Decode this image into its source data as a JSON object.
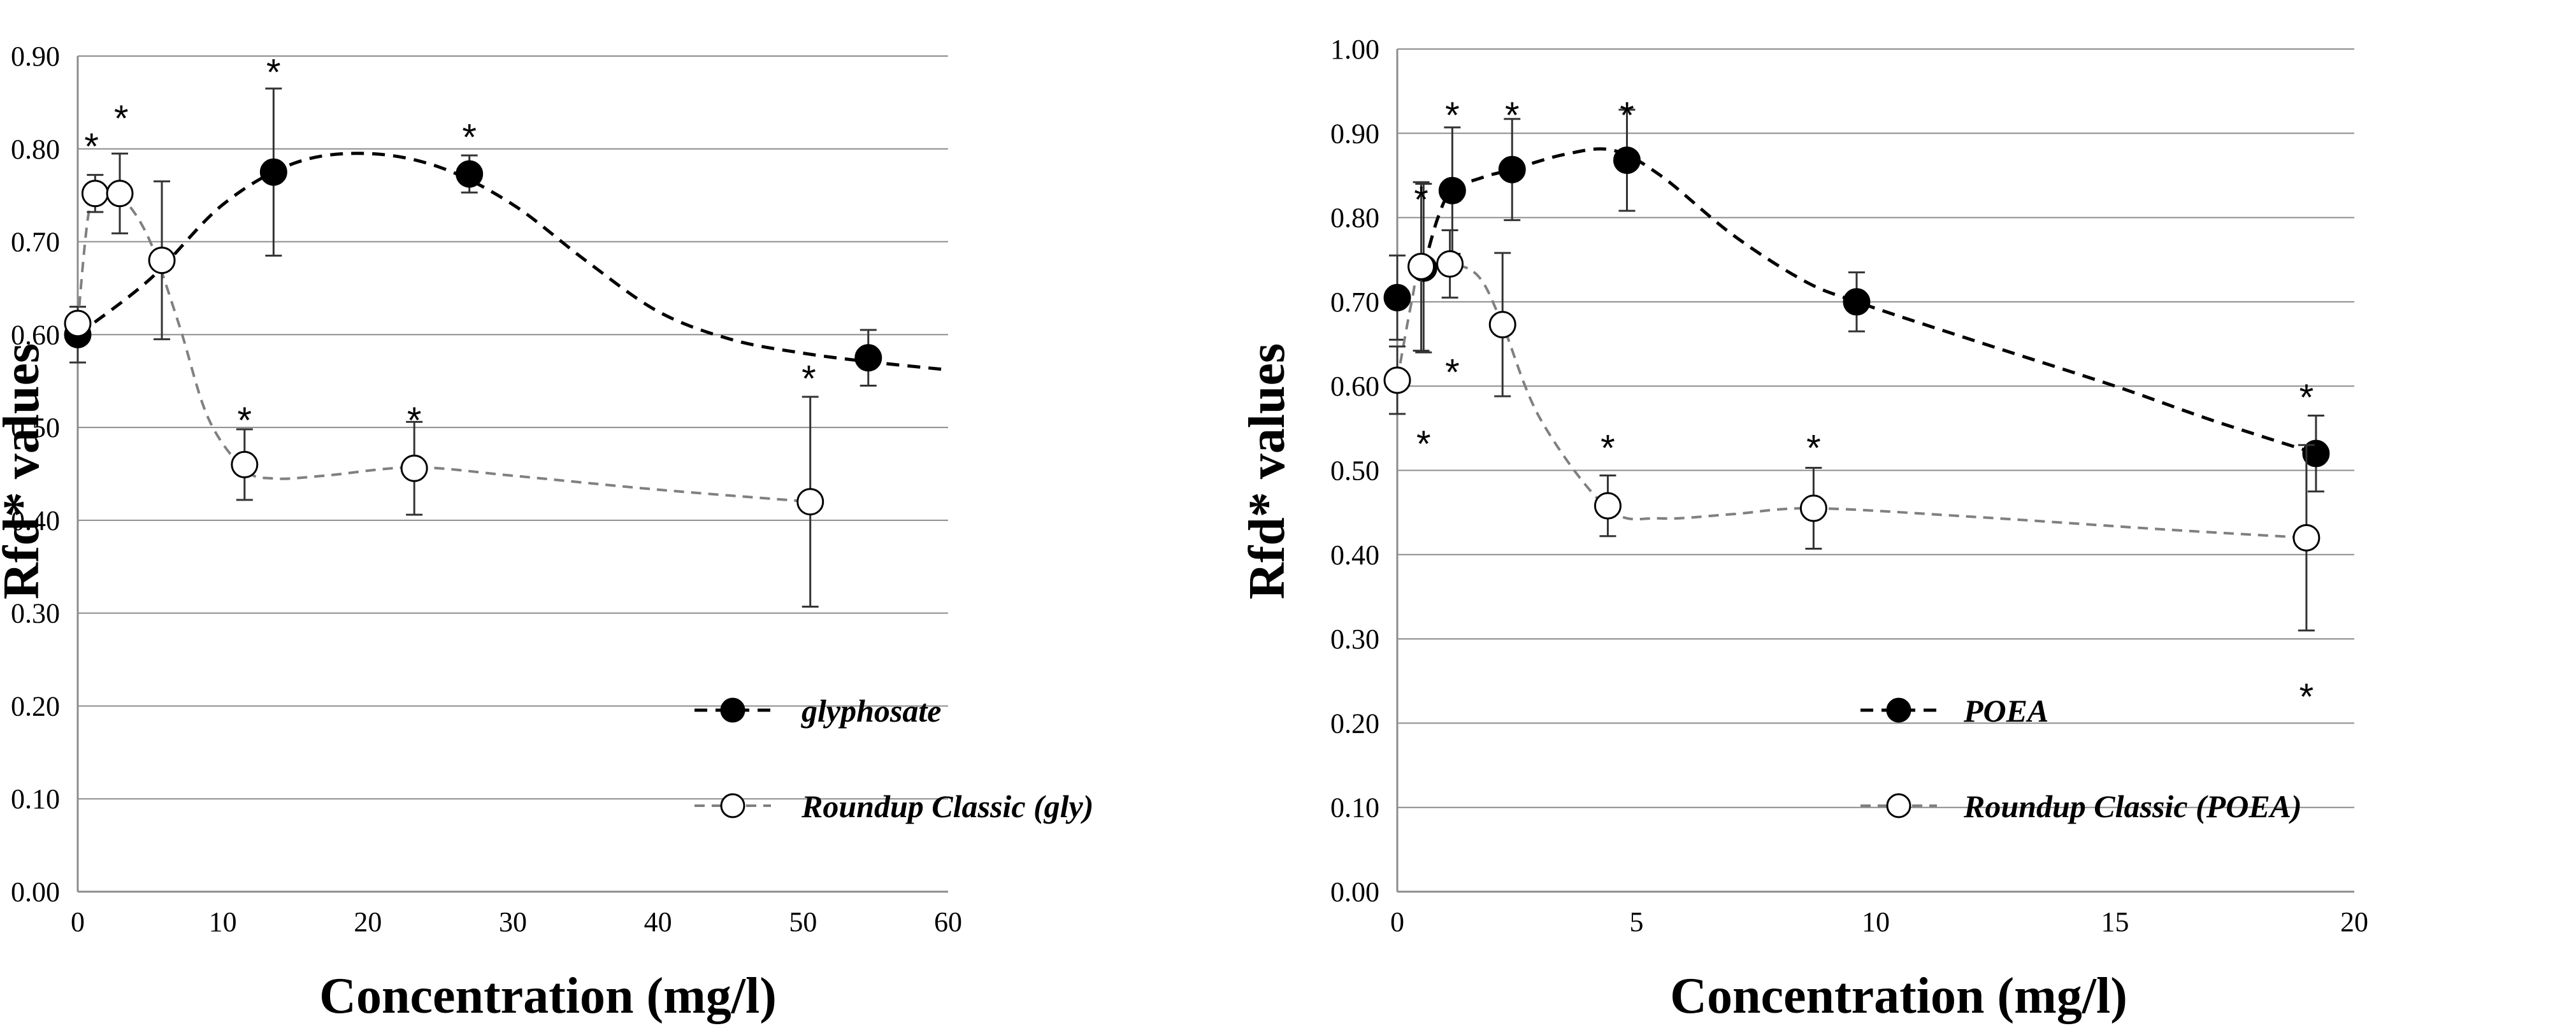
{
  "chart_data": [
    {
      "type": "line",
      "ylabel": "Rfd* values",
      "xlabel": "Concentration (mg/l)",
      "xlim": [
        0,
        60
      ],
      "ylim": [
        0,
        0.9
      ],
      "xticks": [
        0,
        10,
        20,
        30,
        40,
        50,
        60
      ],
      "xtick_labels": [
        "0",
        "10",
        "20",
        "30",
        "40",
        "50",
        "60"
      ],
      "yticks": [
        0,
        0.1,
        0.2,
        0.3,
        0.4,
        0.5,
        0.6,
        0.7,
        0.8,
        0.9
      ],
      "ytick_labels": [
        "0.00",
        "0.10",
        "0.20",
        "0.30",
        "0.40",
        "0.50",
        "0.60",
        "0.70",
        "0.80",
        "0.90"
      ],
      "grid": true,
      "legend_position": "bottom-right",
      "series": [
        {
          "name": "glyphosate",
          "color": "#000000",
          "marker": "filled-circle",
          "points": [
            {
              "x": 0,
              "y": 0.6,
              "err": 0.03,
              "sig": false
            },
            {
              "x": 13.5,
              "y": 0.775,
              "err": 0.09,
              "sig": true
            },
            {
              "x": 27,
              "y": 0.773,
              "err": 0.02,
              "sig": true
            },
            {
              "x": 54.5,
              "y": 0.575,
              "err": 0.03,
              "sig": false
            }
          ],
          "curve": [
            [
              0,
              0.6
            ],
            [
              5,
              0.66
            ],
            [
              10,
              0.74
            ],
            [
              15,
              0.785
            ],
            [
              20,
              0.795
            ],
            [
              25,
              0.78
            ],
            [
              30,
              0.74
            ],
            [
              35,
              0.68
            ],
            [
              40,
              0.625
            ],
            [
              45,
              0.595
            ],
            [
              50,
              0.58
            ],
            [
              55,
              0.57
            ],
            [
              60,
              0.562
            ]
          ]
        },
        {
          "name": "Roundup Classic (gly)",
          "color": "#808080",
          "marker": "open-circle",
          "points": [
            {
              "x": 0,
              "y": 0.612,
              "err": 0.0,
              "sig": false
            },
            {
              "x": 1.2,
              "y": 0.752,
              "err": 0.02,
              "sig": true
            },
            {
              "x": 2.9,
              "y": 0.752,
              "err": 0.043,
              "sig": true
            },
            {
              "x": 5.8,
              "y": 0.68,
              "err": 0.085,
              "sig": false
            },
            {
              "x": 11.5,
              "y": 0.46,
              "err": 0.038,
              "sig": true
            },
            {
              "x": 23.2,
              "y": 0.456,
              "err": 0.05,
              "sig": true
            },
            {
              "x": 50.5,
              "y": 0.42,
              "err": 0.113,
              "sig": true
            }
          ],
          "curve": [
            [
              0,
              0.612
            ],
            [
              0.8,
              0.735
            ],
            [
              1.8,
              0.752
            ],
            [
              3.2,
              0.745
            ],
            [
              5,
              0.7
            ],
            [
              7,
              0.61
            ],
            [
              9,
              0.51
            ],
            [
              11.5,
              0.455
            ],
            [
              13.5,
              0.445
            ],
            [
              17,
              0.448
            ],
            [
              23.2,
              0.457
            ],
            [
              30,
              0.448
            ],
            [
              40,
              0.433
            ],
            [
              50.5,
              0.42
            ]
          ]
        }
      ],
      "annotations": [
        {
          "text": "*",
          "x": 0.95,
          "y": 0.815
        },
        {
          "text": "*",
          "x": 3.0,
          "y": 0.845
        },
        {
          "text": "*",
          "x": 13.5,
          "y": 0.895
        },
        {
          "text": "*",
          "x": 27,
          "y": 0.825
        },
        {
          "text": "*",
          "x": 11.5,
          "y": 0.52
        },
        {
          "text": "*",
          "x": 23.2,
          "y": 0.52
        },
        {
          "text": "*",
          "x": 50.4,
          "y": 0.565
        }
      ]
    },
    {
      "type": "line",
      "ylabel": "Rfd* values",
      "xlabel": "Concentration (mg/l)",
      "xlim": [
        0,
        20
      ],
      "ylim": [
        0,
        1.0
      ],
      "xticks": [
        0,
        5,
        10,
        15,
        20
      ],
      "xtick_labels": [
        "0",
        "5",
        "10",
        "15",
        "20"
      ],
      "yticks": [
        0,
        0.1,
        0.2,
        0.3,
        0.4,
        0.5,
        0.6,
        0.7,
        0.8,
        0.9,
        1.0
      ],
      "ytick_labels": [
        "0.00",
        "0.10",
        "0.20",
        "0.30",
        "0.40",
        "0.50",
        "0.60",
        "0.70",
        "0.80",
        "0.90",
        "1.00"
      ],
      "grid": true,
      "legend_position": "bottom-right",
      "series": [
        {
          "name": "POEA",
          "color": "#000000",
          "marker": "filled-circle",
          "points": [
            {
              "x": 0,
              "y": 0.705,
              "err": 0.05,
              "sig": false
            },
            {
              "x": 0.55,
              "y": 0.74,
              "err": 0.1,
              "sig": true
            },
            {
              "x": 1.15,
              "y": 0.832,
              "err": 0.075,
              "sig": true
            },
            {
              "x": 2.4,
              "y": 0.857,
              "err": 0.06,
              "sig": true
            },
            {
              "x": 4.8,
              "y": 0.868,
              "err": 0.06,
              "sig": true
            },
            {
              "x": 9.6,
              "y": 0.7,
              "err": 0.035,
              "sig": false
            },
            {
              "x": 19.2,
              "y": 0.52,
              "err": 0.045,
              "sig": true
            }
          ],
          "curve": [
            [
              0.55,
              0.74
            ],
            [
              0.85,
              0.8
            ],
            [
              1.15,
              0.832
            ],
            [
              1.8,
              0.848
            ],
            [
              2.4,
              0.857
            ],
            [
              3.5,
              0.875
            ],
            [
              4.5,
              0.88
            ],
            [
              5.5,
              0.85
            ],
            [
              7,
              0.78
            ],
            [
              8.5,
              0.725
            ],
            [
              9.6,
              0.7
            ],
            [
              12,
              0.655
            ],
            [
              15,
              0.6
            ],
            [
              17,
              0.56
            ],
            [
              19.2,
              0.52
            ]
          ]
        },
        {
          "name": "Roundup Classic (POEA)",
          "color": "#808080",
          "marker": "open-circle",
          "points": [
            {
              "x": 0,
              "y": 0.607,
              "err": 0.04,
              "sig": false
            },
            {
              "x": 0.5,
              "y": 0.742,
              "err": 0.1,
              "sig": false
            },
            {
              "x": 1.1,
              "y": 0.745,
              "err": 0.04,
              "sig": false
            },
            {
              "x": 2.2,
              "y": 0.673,
              "err": 0.085,
              "sig": false
            },
            {
              "x": 4.4,
              "y": 0.458,
              "err": 0.036,
              "sig": true
            },
            {
              "x": 8.7,
              "y": 0.455,
              "err": 0.048,
              "sig": true
            },
            {
              "x": 19.0,
              "y": 0.42,
              "err": 0.11,
              "sig": false
            }
          ],
          "curve": [
            [
              0,
              0.607
            ],
            [
              0.3,
              0.7
            ],
            [
              0.5,
              0.742
            ],
            [
              1.1,
              0.745
            ],
            [
              1.7,
              0.73
            ],
            [
              2.2,
              0.673
            ],
            [
              3,
              0.56
            ],
            [
              4.4,
              0.455
            ],
            [
              5.5,
              0.443
            ],
            [
              7,
              0.448
            ],
            [
              8.7,
              0.455
            ],
            [
              12,
              0.445
            ],
            [
              16,
              0.43
            ],
            [
              19,
              0.42
            ]
          ]
        }
      ],
      "annotations": [
        {
          "text": "*",
          "x": 0.5,
          "y": 0.835
        },
        {
          "text": "*",
          "x": 1.15,
          "y": 0.935
        },
        {
          "text": "*",
          "x": 2.4,
          "y": 0.935
        },
        {
          "text": "*",
          "x": 4.8,
          "y": 0.935
        },
        {
          "text": "*",
          "x": 1.15,
          "y": 0.63
        },
        {
          "text": "*",
          "x": 0.55,
          "y": 0.545
        },
        {
          "text": "*",
          "x": 4.4,
          "y": 0.54
        },
        {
          "text": "*",
          "x": 8.7,
          "y": 0.54
        },
        {
          "text": "*",
          "x": 19.0,
          "y": 0.6
        },
        {
          "text": "*",
          "x": 19.0,
          "y": 0.245
        }
      ]
    }
  ]
}
